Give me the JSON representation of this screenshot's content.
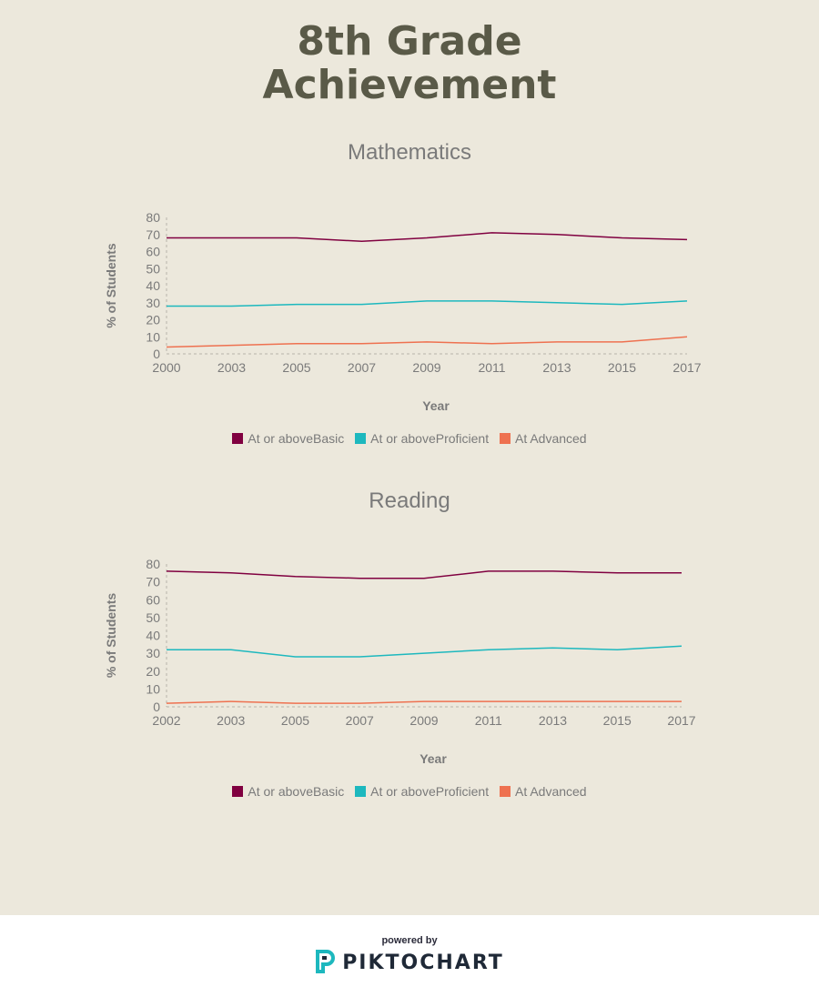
{
  "page": {
    "title_line1": "8th Grade",
    "title_line2": "Achievement"
  },
  "colors": {
    "basic": "#800040",
    "proficient": "#1db8be",
    "advanced": "#ee7150",
    "axis_text": "#7a7a7a"
  },
  "chart_data": [
    {
      "type": "line",
      "title": "Mathematics",
      "xlabel": "Year",
      "ylabel": "% of Students",
      "categories": [
        "2000",
        "2003",
        "2005",
        "2007",
        "2009",
        "2011",
        "2013",
        "2015",
        "2017"
      ],
      "ylim": [
        0,
        80
      ],
      "yticks": [
        0,
        10,
        20,
        30,
        40,
        50,
        60,
        70,
        80
      ],
      "legend": "bottom-center",
      "series": [
        {
          "name": "At or aboveBasic",
          "color_key": "basic",
          "values": [
            68,
            68,
            68,
            66,
            68,
            71,
            70,
            68,
            67
          ]
        },
        {
          "name": "At or aboveProficient",
          "color_key": "proficient",
          "values": [
            28,
            28,
            29,
            29,
            31,
            31,
            30,
            29,
            31
          ]
        },
        {
          "name": "At Advanced",
          "color_key": "advanced",
          "values": [
            4,
            5,
            6,
            6,
            7,
            6,
            7,
            7,
            10
          ]
        }
      ]
    },
    {
      "type": "line",
      "title": "Reading",
      "xlabel": "Year",
      "ylabel": "% of Students",
      "categories": [
        "2002",
        "2003",
        "2005",
        "2007",
        "2009",
        "2011",
        "2013",
        "2015",
        "2017"
      ],
      "ylim": [
        0,
        80
      ],
      "yticks": [
        0,
        10,
        20,
        30,
        40,
        50,
        60,
        70,
        80
      ],
      "legend": "bottom-center",
      "series": [
        {
          "name": "At or aboveBasic",
          "color_key": "basic",
          "values": [
            76,
            75,
            73,
            72,
            72,
            76,
            76,
            75,
            75
          ]
        },
        {
          "name": "At or aboveProficient",
          "color_key": "proficient",
          "values": [
            32,
            32,
            28,
            28,
            30,
            32,
            33,
            32,
            34
          ]
        },
        {
          "name": "At Advanced",
          "color_key": "advanced",
          "values": [
            2,
            3,
            2,
            2,
            3,
            3,
            3,
            3,
            3
          ]
        }
      ]
    }
  ],
  "footer": {
    "powered_by": "powered by",
    "brand": "PIKTOCHART"
  }
}
